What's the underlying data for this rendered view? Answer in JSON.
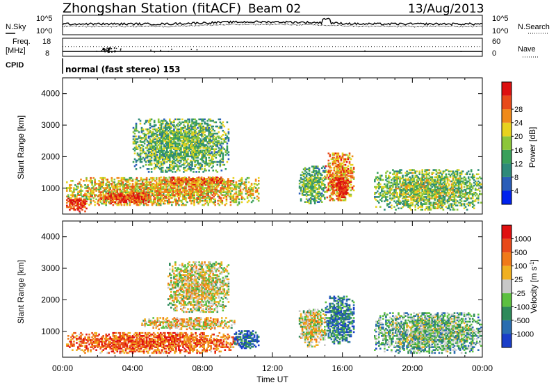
{
  "header": {
    "station": "Zhongshan Station (fitACF)",
    "beam": "Beam 02",
    "date": "13/Aug/2013"
  },
  "status_panels": {
    "nsky_label": "N.Sky",
    "nsky_ticks": [
      "10^5",
      "10^0"
    ],
    "nsearch_label": "N.Search",
    "nsearch_ticks": [
      "10^5",
      "10^0"
    ],
    "freq_label": "Freq.",
    "freq_unit": "[MHz]",
    "freq_ticks": [
      "18",
      "8"
    ],
    "nave_label": "Nave",
    "nave_ticks": [
      "60",
      "0"
    ],
    "cpid_label": "CPID",
    "cpid_text": "normal (fast stereo) 153"
  },
  "colors": {
    "power": [
      "#0022ee",
      "#2a5db8",
      "#2f8a7a",
      "#3aa05a",
      "#8cc63a",
      "#e8d21e",
      "#f08a1a",
      "#e84a1a",
      "#dd1010"
    ],
    "velocity": [
      "#1a3ec8",
      "#2a6db0",
      "#2e8a5a",
      "#5cc040",
      "#c8c8c8",
      "#f0b020",
      "#f07a18",
      "#e84a1a",
      "#e01010"
    ]
  },
  "chart_data": [
    {
      "type": "heatmap",
      "name": "power",
      "ylabel": "Slant Range [km]",
      "yticks": [
        "1000",
        "2000",
        "3000",
        "4000"
      ],
      "ylim": [
        180,
        4500
      ],
      "xlabel": "Time UT",
      "xticks": [
        "00:00",
        "04:00",
        "08:00",
        "12:00",
        "16:00",
        "20:00",
        "00:00"
      ],
      "colorbar_label": "Power [dB]",
      "colorbar_ticks": [
        "4",
        "8",
        "12",
        "16",
        "20",
        "24",
        "28"
      ],
      "regions": [
        {
          "t": [
            0.2,
            11.2
          ],
          "r": [
            450,
            1350
          ],
          "level": 0.55
        },
        {
          "t": [
            0.2,
            1.4
          ],
          "r": [
            250,
            700
          ],
          "level": 0.85
        },
        {
          "t": [
            2.0,
            5.0
          ],
          "r": [
            500,
            850
          ],
          "level": 0.8
        },
        {
          "t": [
            5.5,
            9.5
          ],
          "r": [
            1100,
            1350
          ],
          "level": 0.7
        },
        {
          "t": [
            4.0,
            9.5
          ],
          "r": [
            1500,
            3200
          ],
          "level": 0.35
        },
        {
          "t": [
            15.0,
            16.6
          ],
          "r": [
            600,
            2100
          ],
          "level": 0.65
        },
        {
          "t": [
            15.6,
            16.3
          ],
          "r": [
            700,
            1300
          ],
          "level": 0.9
        },
        {
          "t": [
            13.5,
            15.0
          ],
          "r": [
            500,
            1700
          ],
          "level": 0.35
        },
        {
          "t": [
            17.8,
            23.9
          ],
          "r": [
            300,
            1600
          ],
          "level": 0.4
        }
      ]
    },
    {
      "type": "heatmap",
      "name": "velocity",
      "ylabel": "Slant Range [km]",
      "yticks": [
        "1000",
        "2000",
        "3000",
        "4000"
      ],
      "ylim": [
        180,
        4500
      ],
      "xlabel": "Time UT",
      "xticks": [
        "00:00",
        "04:00",
        "08:00",
        "12:00",
        "16:00",
        "20:00",
        "00:00"
      ],
      "colorbar_label": "Velocity [m s^-1]",
      "colorbar_ticks": [
        "1000",
        "500",
        "100",
        "25",
        "-25",
        "-100",
        "-500",
        "-1000"
      ],
      "regions": [
        {
          "t": [
            0.2,
            10.0
          ],
          "r": [
            300,
            950
          ],
          "level": 0.72
        },
        {
          "t": [
            4.5,
            9.8
          ],
          "r": [
            1050,
            1450
          ],
          "level": 0.5
        },
        {
          "t": [
            6.0,
            9.5
          ],
          "r": [
            1600,
            3200
          ],
          "level": 0.45
        },
        {
          "t": [
            9.8,
            11.2
          ],
          "r": [
            450,
            1000
          ],
          "level": 0.05
        },
        {
          "t": [
            15.0,
            16.6
          ],
          "r": [
            600,
            2100
          ],
          "level": 0.15
        },
        {
          "t": [
            13.5,
            15.0
          ],
          "r": [
            500,
            1700
          ],
          "level": 0.45
        },
        {
          "t": [
            17.8,
            23.9
          ],
          "r": [
            300,
            1600
          ],
          "level": 0.3
        }
      ]
    }
  ]
}
